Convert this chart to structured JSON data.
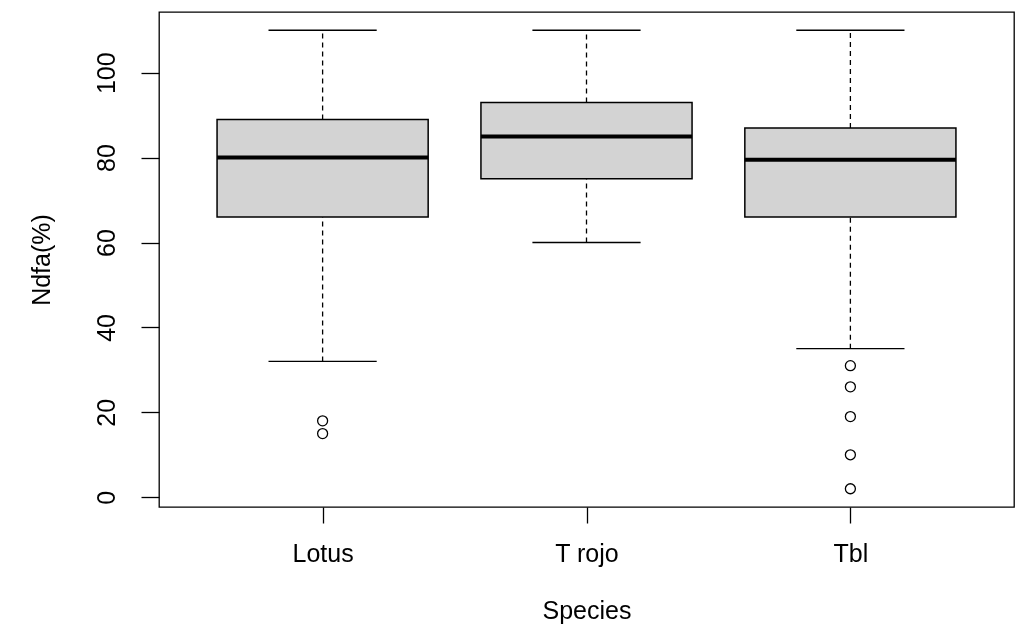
{
  "chart_data": {
    "type": "box",
    "xlabel": "Species",
    "ylabel": "Ndfa(%)",
    "categories": [
      "Lotus",
      "T rojo",
      "Tbl"
    ],
    "series": [
      {
        "color": "#d3d3d3",
        "boxes": [
          {
            "low": 32,
            "q1": 66,
            "median": 80,
            "q3": 89,
            "high": 110,
            "outliers": [
              18,
              15
            ]
          },
          {
            "low": 60,
            "q1": 75,
            "median": 85,
            "q3": 93,
            "high": 110
          },
          {
            "low": 35,
            "q1": 66,
            "median": 79.5,
            "q3": 87,
            "high": 110,
            "outliers": [
              31,
              26,
              19,
              10,
              2
            ]
          }
        ]
      }
    ],
    "ylim": [
      -2.3,
      114.3
    ],
    "yticks": [
      0,
      20,
      40,
      60,
      80,
      100
    ]
  }
}
